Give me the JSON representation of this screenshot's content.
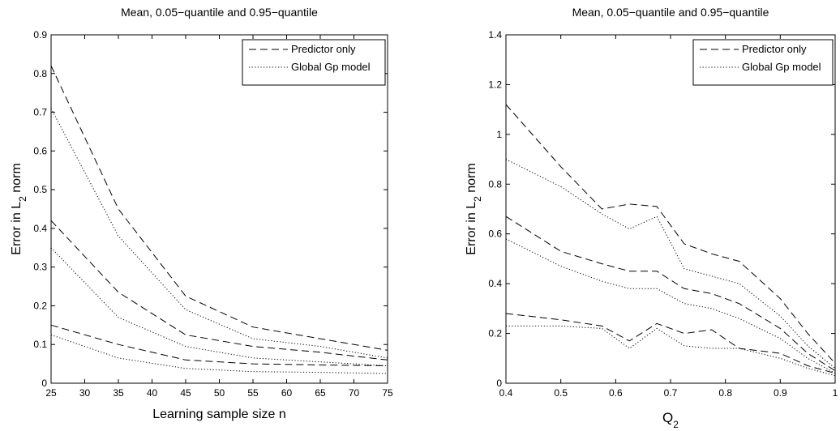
{
  "chart_data": [
    {
      "type": "line",
      "title": "Mean, 0.05−quantile and 0.95−quantile",
      "xlabel": "Learning sample size n",
      "ylabel": "Error in L₂ norm",
      "ylabel_main": "Error in L",
      "ylabel_sub": "2",
      "ylabel_tail": " norm",
      "xlim": [
        25,
        75
      ],
      "ylim": [
        0,
        0.9
      ],
      "xticks": [
        "25",
        "30",
        "35",
        "40",
        "45",
        "50",
        "55",
        "60",
        "65",
        "70",
        "75"
      ],
      "yticks": [
        "0",
        "0.1",
        "0.2",
        "0.3",
        "0.4",
        "0.5",
        "0.6",
        "0.7",
        "0.8",
        "0.9"
      ],
      "legend": {
        "placement": "top-right",
        "entries": [
          "Predictor only",
          "Global Gp model"
        ]
      },
      "grid": false,
      "series": [
        {
          "name": "Predictor only",
          "style": "dashed",
          "x": [
            25,
            35,
            45,
            55,
            65,
            75
          ],
          "y": [
            0.82,
            0.45,
            0.225,
            0.145,
            0.115,
            0.085
          ]
        },
        {
          "name": "Predictor only",
          "style": "dashed",
          "x": [
            25,
            35,
            45,
            55,
            65,
            75
          ],
          "y": [
            0.42,
            0.235,
            0.125,
            0.095,
            0.08,
            0.06
          ]
        },
        {
          "name": "Predictor only",
          "style": "dashed",
          "x": [
            25,
            35,
            45,
            55,
            65,
            75
          ],
          "y": [
            0.15,
            0.1,
            0.06,
            0.05,
            0.047,
            0.045
          ]
        },
        {
          "name": "Global Gp model",
          "style": "dotted",
          "x": [
            25,
            35,
            45,
            55,
            65,
            75
          ],
          "y": [
            0.71,
            0.38,
            0.19,
            0.115,
            0.095,
            0.065
          ]
        },
        {
          "name": "Global Gp model",
          "style": "dotted",
          "x": [
            25,
            35,
            45,
            55,
            65,
            75
          ],
          "y": [
            0.35,
            0.17,
            0.095,
            0.065,
            0.055,
            0.045
          ]
        },
        {
          "name": "Global Gp model",
          "style": "dotted",
          "x": [
            25,
            35,
            45,
            55,
            65,
            75
          ],
          "y": [
            0.125,
            0.065,
            0.038,
            0.03,
            0.028,
            0.025
          ]
        }
      ]
    },
    {
      "type": "line",
      "title": "Mean, 0.05−quantile and 0.95−quantile",
      "xlabel": "Q₂",
      "xlabel_main": "Q",
      "xlabel_sub": "2",
      "ylabel": "Error in L₂ norm",
      "ylabel_main": "Error in L",
      "ylabel_sub": "2",
      "ylabel_tail": " norm",
      "xlim": [
        0.4,
        1
      ],
      "ylim": [
        0,
        1.4
      ],
      "xticks": [
        "0.4",
        "0.5",
        "0.6",
        "0.7",
        "0.8",
        "0.9",
        "1"
      ],
      "yticks": [
        "0",
        "0.2",
        "0.4",
        "0.6",
        "0.8",
        "1",
        "1.2",
        "1.4"
      ],
      "legend": {
        "placement": "top-right",
        "entries": [
          "Predictor only",
          "Global Gp model"
        ]
      },
      "grid": false,
      "series": [
        {
          "name": "Predictor only",
          "style": "dashed",
          "x": [
            0.4,
            0.5,
            0.575,
            0.625,
            0.675,
            0.725,
            0.775,
            0.825,
            0.9,
            0.95,
            1
          ],
          "y": [
            1.12,
            0.87,
            0.7,
            0.72,
            0.71,
            0.56,
            0.52,
            0.49,
            0.34,
            0.2,
            0.08
          ]
        },
        {
          "name": "Predictor only",
          "style": "dashed",
          "x": [
            0.4,
            0.5,
            0.575,
            0.625,
            0.675,
            0.725,
            0.775,
            0.825,
            0.9,
            0.95,
            1
          ],
          "y": [
            0.67,
            0.53,
            0.48,
            0.45,
            0.45,
            0.38,
            0.36,
            0.32,
            0.22,
            0.12,
            0.05
          ]
        },
        {
          "name": "Predictor only",
          "style": "dashed",
          "x": [
            0.4,
            0.5,
            0.575,
            0.625,
            0.675,
            0.725,
            0.775,
            0.825,
            0.9,
            0.95,
            1
          ],
          "y": [
            0.28,
            0.255,
            0.23,
            0.17,
            0.24,
            0.2,
            0.215,
            0.14,
            0.12,
            0.07,
            0.04
          ]
        },
        {
          "name": "Global Gp model",
          "style": "dotted",
          "x": [
            0.4,
            0.5,
            0.575,
            0.625,
            0.675,
            0.725,
            0.775,
            0.825,
            0.9,
            0.95,
            1
          ],
          "y": [
            0.9,
            0.79,
            0.68,
            0.62,
            0.67,
            0.46,
            0.43,
            0.4,
            0.27,
            0.15,
            0.06
          ]
        },
        {
          "name": "Global Gp model",
          "style": "dotted",
          "x": [
            0.4,
            0.5,
            0.575,
            0.625,
            0.675,
            0.725,
            0.775,
            0.825,
            0.9,
            0.95,
            1
          ],
          "y": [
            0.58,
            0.47,
            0.41,
            0.38,
            0.38,
            0.32,
            0.3,
            0.26,
            0.18,
            0.1,
            0.04
          ]
        },
        {
          "name": "Global Gp model",
          "style": "dotted",
          "x": [
            0.4,
            0.5,
            0.575,
            0.625,
            0.675,
            0.725,
            0.775,
            0.825,
            0.9,
            0.95,
            1
          ],
          "y": [
            0.23,
            0.23,
            0.22,
            0.14,
            0.22,
            0.15,
            0.14,
            0.14,
            0.1,
            0.06,
            0.03
          ]
        }
      ]
    }
  ]
}
